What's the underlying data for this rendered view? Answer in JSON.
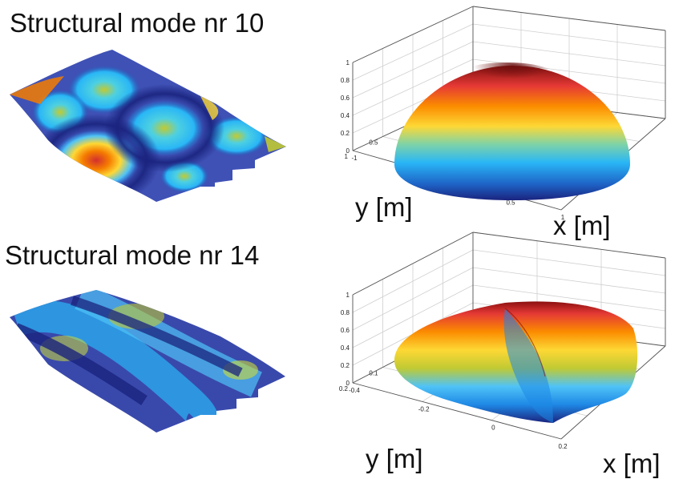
{
  "figure": {
    "panels": [
      {
        "title": "Structural mode nr 10",
        "colors": {
          "low": "#1a237e",
          "mid": "#29b6f6",
          "high": "#d32f2f"
        },
        "chart_data": {
          "type": "surface",
          "title": "",
          "xlabel": "x [m]",
          "ylabel": "y [m]",
          "zlabel": "",
          "xlim": [
            -1,
            1
          ],
          "ylim": [
            -1,
            1
          ],
          "zlim": [
            0,
            1
          ],
          "x_ticks": [
            "-1",
            "-0.5",
            "0",
            "0.5",
            "1"
          ],
          "y_ticks": [
            "-1",
            "-0.5",
            "0",
            "0.5",
            "1"
          ],
          "z_ticks": [
            "0",
            "0.2",
            "0.4",
            "0.6",
            "0.8",
            "1"
          ],
          "grid": true,
          "shape": "hemisphere"
        }
      },
      {
        "title": "Structural mode nr 14",
        "colors": {
          "low": "#1a237e",
          "mid": "#29b6f6",
          "high": "#d32f2f"
        },
        "chart_data": {
          "type": "surface",
          "title": "",
          "xlabel": "x [m]",
          "ylabel": "y [m]",
          "zlabel": "",
          "xlim": [
            -0.4,
            0.2
          ],
          "ylim": [
            -0.2,
            0.2
          ],
          "zlim": [
            0,
            1
          ],
          "x_ticks": [
            "-0.4",
            "-0.2",
            "0",
            "0.2"
          ],
          "y_ticks": [
            "-0.2",
            "-0.1",
            "0",
            "0.1",
            "0.2"
          ],
          "z_ticks": [
            "0",
            "0.2",
            "0.4",
            "0.6",
            "0.8",
            "1"
          ],
          "grid": true,
          "shape": "folded-dome"
        }
      }
    ]
  }
}
